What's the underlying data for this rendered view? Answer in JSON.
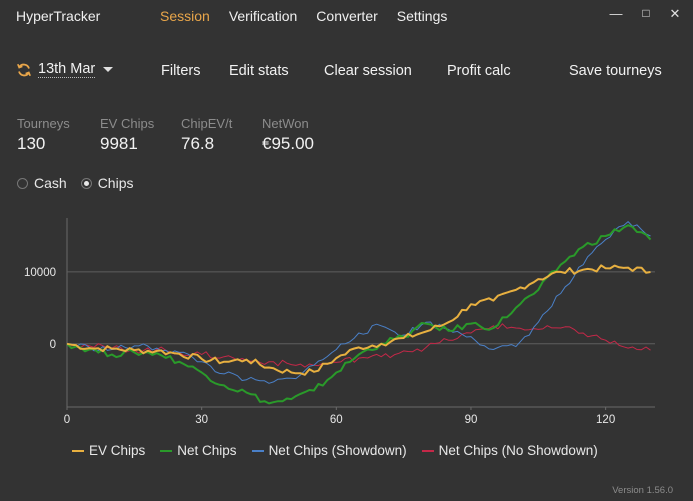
{
  "app": {
    "title": "HyperTracker"
  },
  "nav": {
    "tabs": [
      "Session",
      "Verification",
      "Converter",
      "Settings"
    ],
    "active": "Session"
  },
  "window": {
    "minimize": "—",
    "maximize": "□",
    "close": "✕"
  },
  "toolbar": {
    "refresh_icon": "refresh-icon",
    "date": "13th Mar",
    "filters": "Filters",
    "edit_stats": "Edit stats",
    "clear_session": "Clear session",
    "profit_calc": "Profit calc",
    "save_tourneys": "Save tourneys"
  },
  "stats": [
    {
      "label": "Tourneys",
      "value": "130"
    },
    {
      "label": "EV Chips",
      "value": "9981"
    },
    {
      "label": "ChipEV/t",
      "value": "76.8"
    },
    {
      "label": "NetWon",
      "value": "€95.00"
    }
  ],
  "mode": {
    "options": [
      "Cash",
      "Chips"
    ],
    "selected": "Chips"
  },
  "colors": {
    "accent": "#e9a64a",
    "ev": "#e8b040",
    "net": "#2a9a2a",
    "showdown": "#4a80c8",
    "noshowdown": "#c42848"
  },
  "chart_data": {
    "type": "line",
    "x_ticks": [
      "0",
      "30",
      "60",
      "90",
      "120"
    ],
    "y_ticks": [
      "10000",
      "0"
    ],
    "xlim": [
      0,
      131
    ],
    "ylim": [
      -8800,
      17500
    ],
    "grid": "horizontal",
    "legend_position": "bottom",
    "series": [
      {
        "name": "EV Chips",
        "color": "#e8b040",
        "x": [
          0,
          5,
          10,
          15,
          20,
          25,
          30,
          35,
          40,
          45,
          50,
          55,
          60,
          65,
          70,
          75,
          80,
          85,
          90,
          95,
          100,
          105,
          110,
          115,
          120,
          125,
          130
        ],
        "y": [
          0,
          -600,
          -700,
          -900,
          -1000,
          -1400,
          -2100,
          -2500,
          -2200,
          -3300,
          -4000,
          -3900,
          -2000,
          -500,
          0,
          800,
          1700,
          3000,
          5500,
          6000,
          7500,
          9000,
          10000,
          10300,
          10500,
          10600,
          9981
        ]
      },
      {
        "name": "Net Chips",
        "color": "#2a9a2a",
        "x": [
          0,
          5,
          10,
          15,
          20,
          25,
          30,
          35,
          40,
          45,
          50,
          55,
          60,
          65,
          70,
          75,
          80,
          85,
          90,
          95,
          100,
          105,
          110,
          115,
          120,
          125,
          130
        ],
        "y": [
          0,
          -800,
          -1500,
          -1200,
          -1300,
          -2500,
          -4000,
          -5800,
          -6800,
          -8300,
          -7700,
          -6500,
          -4000,
          -1500,
          0,
          1000,
          2800,
          1800,
          2800,
          2200,
          5000,
          7500,
          11000,
          13500,
          15000,
          16500,
          14500
        ]
      },
      {
        "name": "Net Chips (Showdown)",
        "color": "#4a80c8",
        "x": [
          0,
          5,
          10,
          15,
          20,
          25,
          30,
          35,
          40,
          45,
          50,
          55,
          60,
          65,
          70,
          75,
          80,
          85,
          90,
          95,
          100,
          105,
          110,
          115,
          120,
          125,
          130
        ],
        "y": [
          0,
          -500,
          -800,
          -300,
          -600,
          -1200,
          -2500,
          -4200,
          -5000,
          -5500,
          -4800,
          -3000,
          -800,
          1500,
          2500,
          1200,
          3000,
          2000,
          1000,
          -800,
          -400,
          3000,
          7000,
          11000,
          14500,
          17000,
          15000
        ]
      },
      {
        "name": "Net Chips (No Showdown)",
        "color": "#c42848",
        "x": [
          0,
          5,
          10,
          15,
          20,
          25,
          30,
          35,
          40,
          45,
          50,
          55,
          60,
          65,
          70,
          75,
          80,
          85,
          90,
          95,
          100,
          105,
          110,
          115,
          120,
          125,
          130
        ],
        "y": [
          0,
          -300,
          -600,
          -900,
          -800,
          -1200,
          -1500,
          -1800,
          -2300,
          -2500,
          -2900,
          -3000,
          -2600,
          -2000,
          -1800,
          -1000,
          -500,
          500,
          1500,
          2500,
          2200,
          2000,
          2200,
          1500,
          500,
          -600,
          -900
        ]
      }
    ]
  },
  "version": "Version 1.56.0"
}
